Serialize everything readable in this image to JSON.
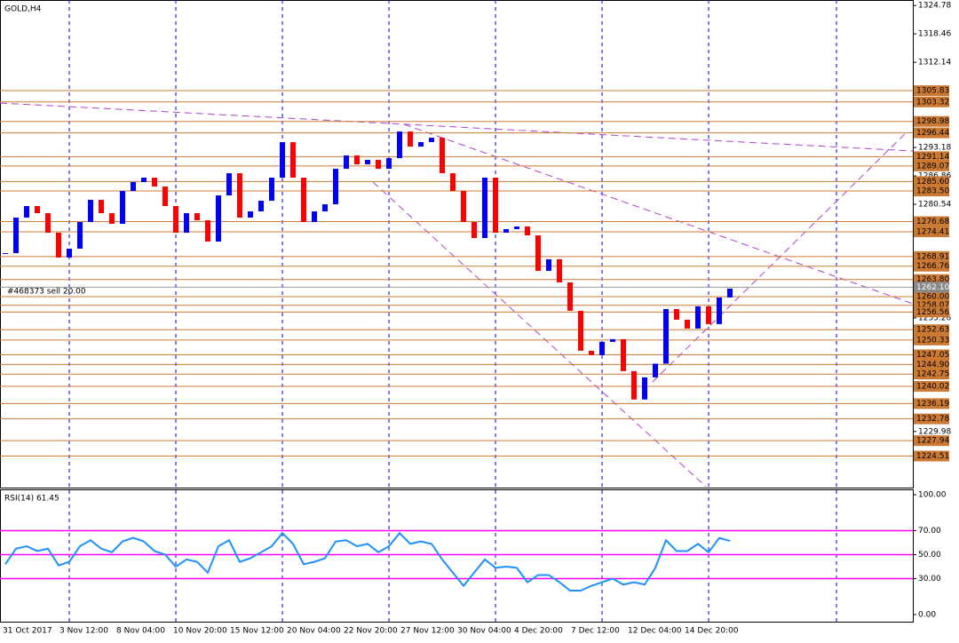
{
  "chart_data": [
    {
      "type": "candlestick",
      "title": "GOLD,H4",
      "order_label": "#468373 sell 20.00",
      "close": [
        1269.67,
        1277.58,
        1280.14,
        1278.56,
        1274.22,
        1268.69,
        1270.66,
        1276.59,
        1281.53,
        1278.56,
        1276.19,
        1283.5,
        1285.48,
        1286.47,
        1284.49,
        1280.14,
        1274.22,
        1278.56,
        1276.98,
        1272.24,
        1282.51,
        1287.45,
        1277.58,
        1278.96,
        1281.33,
        1286.47,
        1294.36,
        1286.47,
        1276.59,
        1278.96,
        1280.54,
        1288.44,
        1291.4,
        1289.43,
        1290.42,
        1288.44,
        1290.81,
        1296.74,
        1293.38,
        1294.37,
        1295.35,
        1287.45,
        1283.5,
        1276.59,
        1273.04,
        1286.47,
        1274.22,
        1275.01,
        1275.6,
        1273.63,
        1265.73,
        1268.3,
        1263.16,
        1256.84,
        1247.95,
        1246.97,
        1249.93,
        1250.52,
        1243.41,
        1237.1,
        1242.03,
        1245.07,
        1257.23,
        1254.86,
        1252.89,
        1257.83,
        1253.88,
        1259.8,
        1261.78
      ],
      "up_color": "#0000ff",
      "down_color": "#ff0000",
      "level_color": "#cc7a33",
      "ylim": [
        1217.3,
        1326.0
      ],
      "yticks": [
        1324.78,
        1318.46,
        1312.14,
        1293.18,
        1286.86,
        1280.54,
        1255.26,
        1229.98
      ],
      "levels": [
        1305.83,
        1303.32,
        1298.98,
        1296.44,
        1291.14,
        1289.07,
        {
          "value": 1285.6,
          "label": "1285.60"
        },
        {
          "value": 1283.5,
          "label": "1283.50"
        },
        1276.68,
        1274.41,
        1268.91,
        1266.76,
        {
          "value": 1263.8,
          "label": "1263.80"
        },
        {
          "value": 1260,
          "label": "1260.00"
        },
        1258.07,
        1256.56,
        1252.63,
        1250.33,
        1247.05,
        {
          "value": 1244.9,
          "label": "1244.90"
        },
        1242.75,
        1240.02,
        1236.19,
        1232.78,
        1227.94,
        1224.51
      ],
      "bid": {
        "value": 1262.1,
        "label": "1262.10"
      },
      "x_labels": [
        "31 Oct 2017",
        "3 Nov 12:00",
        "8 Nov 04:00",
        "10 Nov 20:00",
        "15 Nov 12:00",
        "20 Nov 04:00",
        "22 Nov 20:00",
        "27 Nov 12:00",
        "30 Nov 04:00",
        "4 Dec 20:00",
        "7 Dec 12:00",
        "12 Dec 04:00",
        "14 Dec 20:00"
      ]
    },
    {
      "type": "line",
      "title": "RSI(14) 61.45",
      "color": "#1e90ff",
      "level_color": "#ff00ff",
      "values": [
        42,
        55,
        57,
        53,
        55,
        41,
        44,
        57,
        62,
        55,
        52,
        61,
        64,
        61,
        53,
        50,
        40,
        46,
        44,
        35,
        57,
        62,
        44,
        47,
        52,
        57,
        68,
        59,
        42,
        44,
        47,
        61,
        62,
        57,
        59,
        52,
        57,
        68,
        59,
        61,
        59,
        46,
        35,
        24,
        35,
        46,
        39,
        40,
        39,
        27,
        33,
        33,
        27,
        20,
        20,
        24,
        27,
        30,
        25,
        27,
        25,
        39,
        62,
        53,
        53,
        59,
        52,
        64,
        61.45
      ],
      "ylim": [
        -5.9,
        103.7
      ],
      "yticks": [
        {
          "value": 100,
          "label": "100.00"
        },
        {
          "value": 70,
          "label": "70.00"
        },
        {
          "value": 50,
          "label": "50.00"
        },
        {
          "value": 30,
          "label": "30.00"
        },
        {
          "value": 0,
          "label": "0.00"
        }
      ],
      "levels": [
        70,
        50,
        30
      ]
    }
  ]
}
